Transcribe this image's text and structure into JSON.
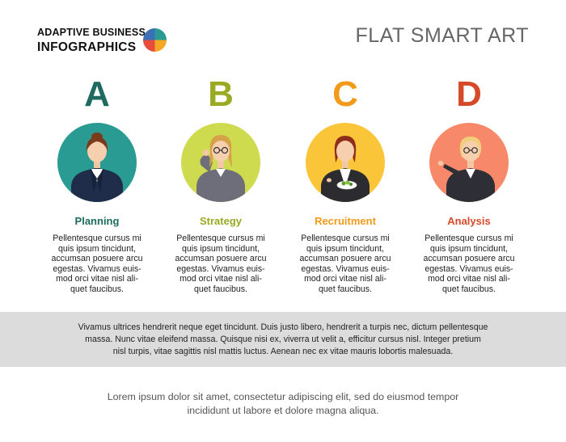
{
  "brand": {
    "line1": "ADAPTIVE BUSINESS",
    "line2": "INFOGRAPHICS",
    "logo_colors": [
      "#2a9b93",
      "#f5a623",
      "#e74c3c",
      "#3b6fb6"
    ]
  },
  "page_title": "FLAT SMART ART",
  "columns": [
    {
      "letter": "A",
      "title": "Planning",
      "color": "#1e6b5f",
      "title_color": "#1e6b5f",
      "circle_color": "#2a9b93",
      "text": "Pellentesque cursus mi\nquis ipsum tincidunt,\naccumsan posuere arcu\negestas. Vivamus euis-\nmod orci vitae nisl ali-\nquet faucibus."
    },
    {
      "letter": "B",
      "title": "Strategy",
      "color": "#9aaa22",
      "title_color": "#9aaa22",
      "circle_color": "#cfdb4e",
      "text": "Pellentesque cursus mi\nquis ipsum tincidunt,\naccumsan posuere arcu\negestas. Vivamus euis-\nmod orci vitae nisl ali-\nquet faucibus."
    },
    {
      "letter": "C",
      "title": "Recruitment",
      "color": "#f29a1a",
      "title_color": "#f29a1a",
      "circle_color": "#fbc53a",
      "text": "Pellentesque cursus mi\nquis ipsum tincidunt,\naccumsan posuere arcu\negestas. Vivamus euis-\nmod orci vitae nisl ali-\nquet faucibus."
    },
    {
      "letter": "D",
      "title": "Analysis",
      "color": "#d64a2a",
      "title_color": "#d64a2a",
      "circle_color": "#f7896a",
      "text": "Pellentesque cursus mi\nquis ipsum tincidunt,\naccumsan posuere arcu\negestas. Vivamus euis-\nmod orci vitae nisl ali-\nquet faucibus."
    }
  ],
  "band_text": "Vivamus ultrices hendrerit neque eget tincidunt. Duis justo libero, hendrerit a turpis nec, dictum pellentesque\nmassa. Nunc vitae eleifend massa. Quisque nisi ex, viverra ut velit a, efficitur cursus nisl. Integer pretium\nnisl turpis, vitae sagittis nisl mattis luctus. Aenean nec ex vitae mauris lobortis malesuada.",
  "footer_text": "Lorem ipsum dolor sit amet, consectetur adipiscing elit, sed do eiusmod tempor\nincididunt ut labore et dolore magna aliqua."
}
